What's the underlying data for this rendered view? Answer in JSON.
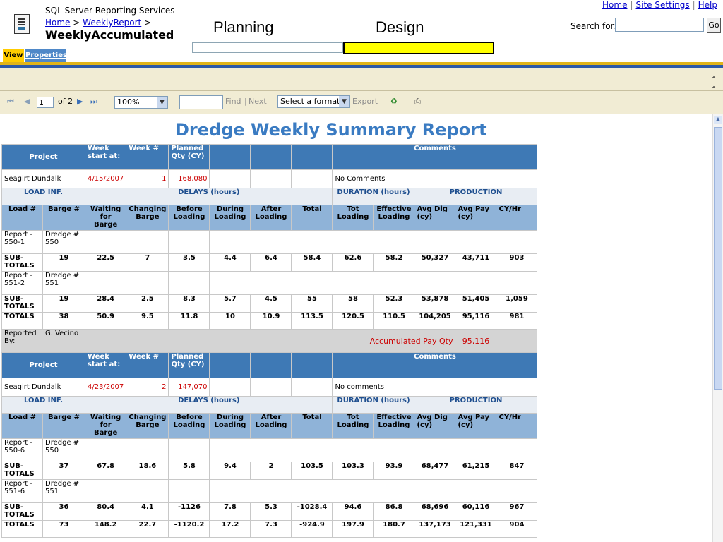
{
  "header": {
    "app_name": "SQL Server Reporting Services",
    "breadcrumb": {
      "home": "Home",
      "sep1": ">",
      "folder": "WeeklyReport",
      "sep2": ">"
    },
    "report_name": "WeeklyAccumulated",
    "top_links": [
      "Home",
      "Site Settings",
      "Help"
    ],
    "search_label": "Search for:",
    "go_label": "Go",
    "phase_planning": "Planning",
    "phase_design": "Design",
    "tabs": {
      "view": "View",
      "properties": "Properties"
    },
    "collapse_icon": "chevron-double-up-icon"
  },
  "toolbar": {
    "page_value": "1",
    "page_of": "of 2",
    "zoom": "100%",
    "find": "Find",
    "find_sep": "|",
    "next": "Next",
    "format": "Select a format",
    "export": "Export",
    "icons": [
      "first-page-icon",
      "prev-page-icon",
      "next-page-icon",
      "last-page-icon",
      "refresh-icon",
      "print-icon"
    ]
  },
  "report": {
    "title": "Dredge Weekly Summary Report",
    "col_headers": {
      "project": "Project",
      "week_start": "Week start at:",
      "week_no": "Week #",
      "planned": "Planned Qty (CY)",
      "comments": "Comments"
    },
    "sections": {
      "load": "LOAD INF.",
      "delays": "DELAYS (hours)",
      "duration": "DURATION (hours)",
      "production": "PRODUCTION"
    },
    "sub_headers": [
      "Load #",
      "Barge #",
      "Waiting for Barge",
      "Changing Barge",
      "Before Loading",
      "During Loading",
      "After Loading",
      "Total",
      "Tot Loading",
      "Effective Loading",
      "Avg Dig (cy)",
      "Avg Pay (cy)",
      "CY/Hr"
    ],
    "blocks": [
      {
        "project": "Seagirt Dundalk",
        "week_start": "4/15/2007",
        "week_no": "1",
        "planned": "168,080",
        "comments": "No Comments",
        "loads": [
          {
            "load": "Report - 550-1",
            "barge": "Dredge # 550",
            "sub_label": "SUB-TOTALS",
            "values": [
              "19",
              "22.5",
              "7",
              "3.5",
              "4.4",
              "6.4",
              "58.4",
              "62.6",
              "58.2",
              "50,327",
              "43,711",
              "903"
            ]
          },
          {
            "load": "Report - 551-2",
            "barge": "Dredge # 551",
            "sub_label": "SUB-TOTALS",
            "values": [
              "19",
              "28.4",
              "2.5",
              "8.3",
              "5.7",
              "4.5",
              "55",
              "58",
              "52.3",
              "53,878",
              "51,405",
              "1,059"
            ]
          }
        ],
        "totals_label": "TOTALS",
        "totals": [
          "38",
          "50.9",
          "9.5",
          "11.8",
          "10",
          "10.9",
          "113.5",
          "120.5",
          "110.5",
          "104,205",
          "95,116",
          "981"
        ],
        "reported_by_label": "Reported By:",
        "reported_by": "G. Vecino",
        "acc_label": "Accumulated Pay Qty",
        "acc_value": "95,116"
      },
      {
        "project": "Seagirt Dundalk",
        "week_start": "4/23/2007",
        "week_no": "2",
        "planned": "147,070",
        "comments": "No comments",
        "loads": [
          {
            "load": "Report - 550-6",
            "barge": "Dredge # 550",
            "sub_label": "SUB-TOTALS",
            "values": [
              "37",
              "67.8",
              "18.6",
              "5.8",
              "9.4",
              "2",
              "103.5",
              "103.3",
              "93.9",
              "68,477",
              "61,215",
              "847"
            ]
          },
          {
            "load": "Report - 551-6",
            "barge": "Dredge # 551",
            "sub_label": "SUB-TOTALS",
            "values": [
              "36",
              "80.4",
              "4.1",
              "-1126",
              "7.8",
              "5.3",
              "-1028.4",
              "94.6",
              "86.8",
              "68,696",
              "60,116",
              "967"
            ]
          }
        ],
        "totals_label": "TOTALS",
        "totals": [
          "73",
          "148.2",
          "22.7",
          "-1120.2",
          "17.2",
          "7.3",
          "-924.9",
          "197.9",
          "180.7",
          "137,173",
          "121,331",
          "904"
        ]
      }
    ]
  }
}
